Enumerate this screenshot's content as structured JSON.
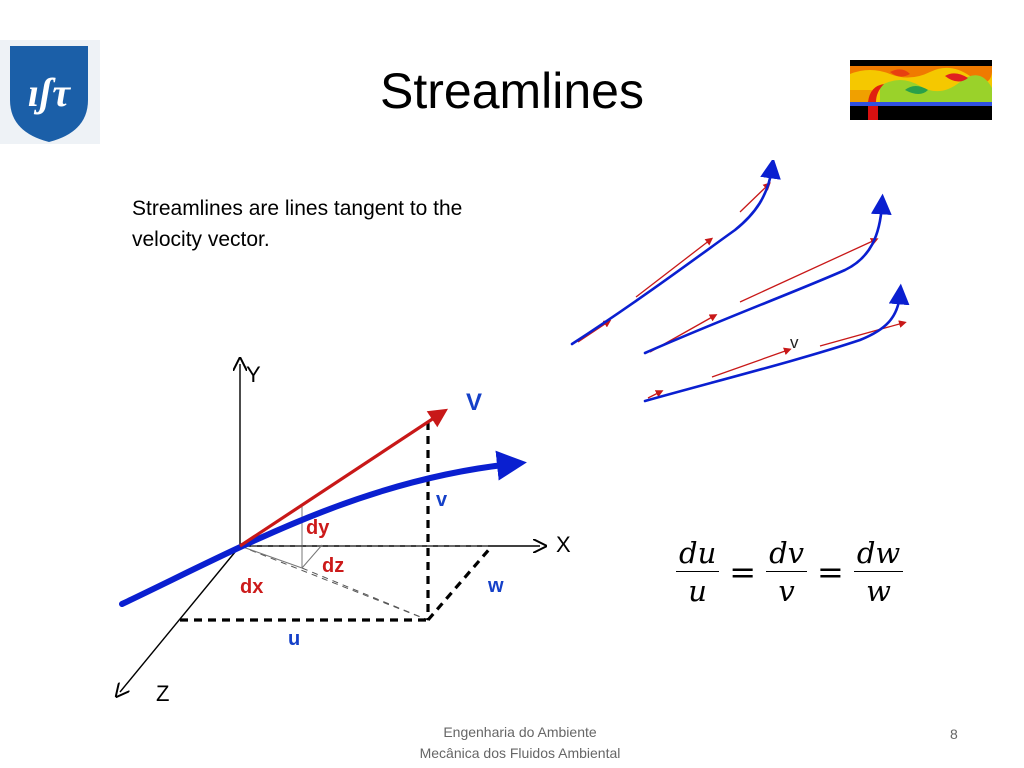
{
  "slide": {
    "title": "Streamlines",
    "body": "Streamlines are lines tangent to the velocity vector.",
    "logo_text": "ıʃτ",
    "footer_line1": "Engenharia do Ambiente",
    "footer_line2": "Mecânica dos Fluidos Ambiental",
    "page_number": "8"
  },
  "diagram": {
    "axis_y": "Y",
    "axis_x": "X",
    "axis_z": "Z",
    "vector_label": "V",
    "label_v": "v",
    "label_w": "w",
    "label_u": "u",
    "label_dx": "dx",
    "label_dy": "dy",
    "label_dz": "dz"
  },
  "streamline_figure": {
    "label_v": "v"
  },
  "formula": {
    "num1": "du",
    "den1": "u",
    "num2": "dv",
    "den2": "v",
    "num3": "dw",
    "den3": "w",
    "equals": "="
  },
  "colors": {
    "streamline_blue": "#0a1fd0",
    "velocity_red": "#c81818",
    "logo_blue": "#1b5fa8",
    "label_blue": "#1540c8",
    "label_red": "#cc1a1a"
  }
}
